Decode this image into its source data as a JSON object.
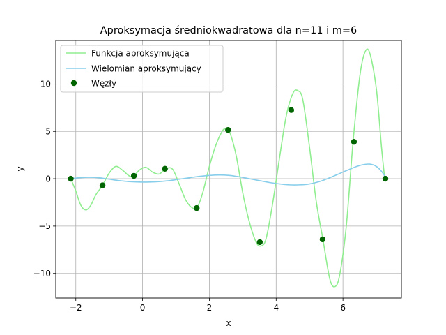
{
  "chart_data": {
    "type": "line",
    "title": "Aproksymacja średniokwadratowa dla n=11 i m=6",
    "xlabel": "x",
    "ylabel": "y",
    "xlim": [
      -2.6,
      7.75
    ],
    "ylim": [
      -12.6,
      14.6
    ],
    "xticks": [
      -2,
      0,
      2,
      4,
      6
    ],
    "yticks": [
      -10,
      -5,
      0,
      5,
      10
    ],
    "grid": true,
    "legend_position": "top-left",
    "series": [
      {
        "name": "Funkcja aproksymująca",
        "kind": "line",
        "color": "#90ee90",
        "x": [
          -2.15,
          -2.0,
          -1.85,
          -1.7,
          -1.55,
          -1.4,
          -1.2,
          -1.0,
          -0.8,
          -0.6,
          -0.4,
          -0.26,
          -0.1,
          0.1,
          0.3,
          0.5,
          0.7,
          0.9,
          1.1,
          1.3,
          1.5,
          1.65,
          1.8,
          2.0,
          2.2,
          2.4,
          2.5,
          2.6,
          2.8,
          3.0,
          3.2,
          3.4,
          3.55,
          3.7,
          3.9,
          4.1,
          4.3,
          4.5,
          4.65,
          4.8,
          5.0,
          5.2,
          5.4,
          5.6,
          5.75,
          5.9,
          6.1,
          6.3,
          6.5,
          6.65,
          6.8,
          7.0,
          7.15,
          7.25
        ],
        "y": [
          0.0,
          -1.3,
          -2.8,
          -3.3,
          -2.8,
          -1.7,
          -0.7,
          0.6,
          1.3,
          0.9,
          0.3,
          0.3,
          0.9,
          1.2,
          0.7,
          0.5,
          1.05,
          1.0,
          -0.6,
          -2.3,
          -3.1,
          -2.9,
          -1.5,
          1.3,
          3.6,
          5.1,
          5.2,
          5.0,
          2.5,
          -1.5,
          -4.6,
          -6.7,
          -7.1,
          -6.3,
          -2.5,
          2.2,
          6.6,
          9.0,
          9.3,
          8.3,
          3.3,
          -2.4,
          -6.4,
          -10.5,
          -11.4,
          -10.2,
          -5.0,
          3.8,
          10.7,
          13.3,
          13.3,
          9.5,
          3.5,
          0.0
        ]
      },
      {
        "name": "Wielomian aproksymujący",
        "kind": "line",
        "color": "#87ceeb",
        "x": [
          -2.15,
          -1.9,
          -1.6,
          -1.3,
          -1.0,
          -0.7,
          -0.4,
          -0.1,
          0.2,
          0.5,
          0.8,
          1.1,
          1.4,
          1.7,
          2.0,
          2.3,
          2.6,
          2.9,
          3.2,
          3.5,
          3.8,
          4.1,
          4.4,
          4.7,
          5.0,
          5.3,
          5.6,
          5.9,
          6.2,
          6.5,
          6.8,
          7.0,
          7.15,
          7.25
        ],
        "y": [
          0.0,
          0.1,
          0.15,
          0.1,
          -0.05,
          -0.2,
          -0.3,
          -0.35,
          -0.35,
          -0.3,
          -0.2,
          -0.05,
          0.1,
          0.25,
          0.35,
          0.4,
          0.35,
          0.2,
          0.0,
          -0.2,
          -0.4,
          -0.55,
          -0.65,
          -0.65,
          -0.55,
          -0.3,
          0.1,
          0.55,
          1.0,
          1.4,
          1.55,
          1.3,
          0.8,
          0.3
        ]
      },
      {
        "name": "Węzły",
        "kind": "scatter",
        "color": "#006400",
        "x": [
          -2.15,
          -1.2,
          -0.26,
          0.67,
          1.62,
          2.56,
          3.51,
          4.45,
          5.39,
          6.33,
          7.27
        ],
        "y": [
          0.0,
          -0.7,
          0.3,
          1.05,
          -3.1,
          5.15,
          -6.7,
          7.25,
          -6.4,
          3.9,
          0.0
        ]
      }
    ]
  }
}
